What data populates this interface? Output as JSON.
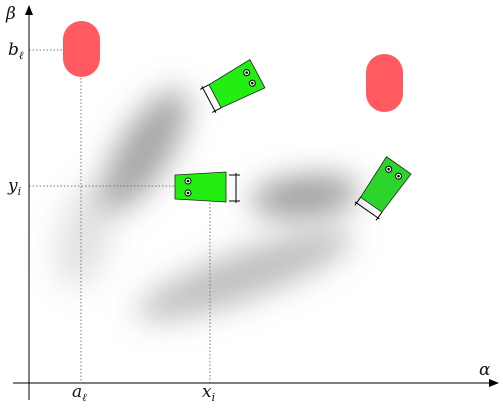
{
  "axes": {
    "x_label": "α",
    "y_label": "β"
  },
  "ticks": {
    "a_var": "a",
    "a_sub": "ℓ",
    "x_var": "x",
    "x_sub": "i",
    "b_var": "b",
    "b_sub": "ℓ",
    "y_var": "y",
    "y_sub": "i"
  },
  "colors": {
    "robot_bright": "#22ee11",
    "robot_dark": "#2bd42b",
    "landmark": "#ff5a5f",
    "blob": "#888888",
    "axis": "#000000"
  }
}
